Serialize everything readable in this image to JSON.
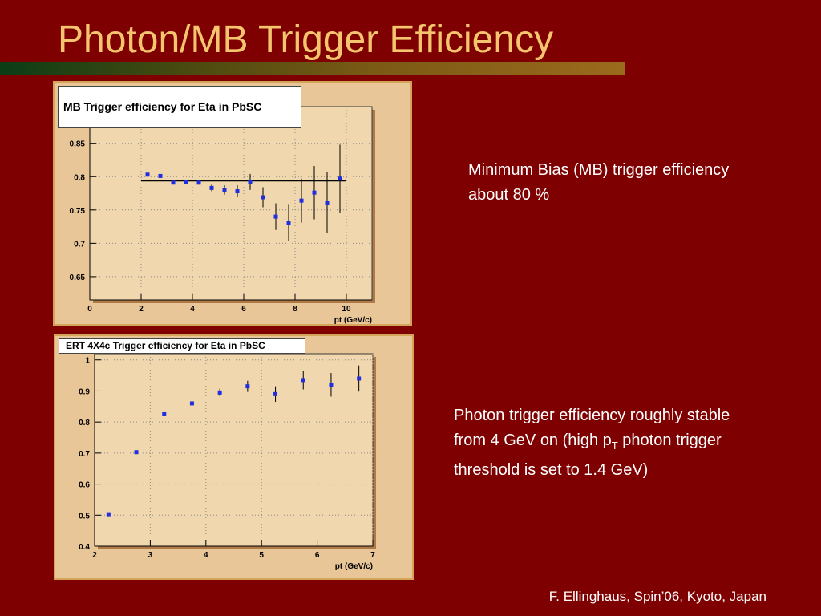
{
  "slide": {
    "title": "Photon/MB Trigger Efficiency",
    "footer": "F. Ellinghaus, Spin’06, Kyoto, Japan"
  },
  "notes": {
    "mb": "Minimum Bias (MB) trigger efficiency about 80 %",
    "photon_before": "Photon trigger efficiency roughly stable from 4 GeV on (high p",
    "photon_sub": "T",
    "photon_after": " photon trigger threshold is set to 1.4 GeV)"
  },
  "colors": {
    "background": "#7f0000",
    "title": "#f4c56e",
    "panel": "#e8c698",
    "plot_area": "#f0d7ad",
    "marker": "#1f2fe0"
  },
  "chart_data": [
    {
      "type": "scatter",
      "title": "MB Trigger efficiency for Eta in PbSC",
      "xlabel": "pt (GeV/c)",
      "ylabel": "",
      "xlim": [
        0,
        11
      ],
      "ylim": [
        0.615,
        0.905
      ],
      "xticks": [
        0,
        2,
        4,
        6,
        8,
        10
      ],
      "yticks": [
        0.65,
        0.7,
        0.75,
        0.8,
        0.85
      ],
      "grid": true,
      "fit_line": {
        "value": 0.794,
        "x_from": 2.0,
        "x_to": 10.0
      },
      "series": [
        {
          "x": [
            2.25,
            2.75,
            3.25,
            3.75,
            4.25,
            4.75,
            5.25,
            5.75,
            6.25,
            6.75,
            7.25,
            7.75,
            8.25,
            8.75,
            9.25,
            9.75
          ],
          "y": [
            0.803,
            0.801,
            0.791,
            0.792,
            0.791,
            0.783,
            0.78,
            0.778,
            0.792,
            0.769,
            0.74,
            0.731,
            0.764,
            0.776,
            0.761,
            0.797
          ],
          "err": [
            0.0,
            0.0,
            0.0,
            0.0,
            0.003,
            0.005,
            0.007,
            0.009,
            0.012,
            0.015,
            0.02,
            0.028,
            0.033,
            0.04,
            0.046,
            0.051
          ]
        }
      ]
    },
    {
      "type": "scatter",
      "title": "ERT 4X4c Trigger efficiency for Eta in PbSC",
      "xlabel": "pt (GeV/c)",
      "ylabel": "",
      "xlim": [
        2,
        7
      ],
      "ylim": [
        0.4,
        1.02
      ],
      "xticks": [
        2,
        3,
        4,
        5,
        6,
        7
      ],
      "yticks": [
        0.4,
        0.5,
        0.6,
        0.7,
        0.8,
        0.9,
        1
      ],
      "grid": true,
      "series": [
        {
          "x": [
            2.25,
            2.75,
            3.25,
            3.75,
            4.25,
            4.75,
            5.25,
            5.75,
            6.25,
            6.75
          ],
          "y": [
            0.503,
            0.703,
            0.825,
            0.86,
            0.895,
            0.915,
            0.89,
            0.935,
            0.92,
            0.94
          ],
          "err": [
            0.0,
            0.0,
            0.0,
            0.007,
            0.012,
            0.018,
            0.025,
            0.03,
            0.038,
            0.042
          ]
        }
      ]
    }
  ]
}
